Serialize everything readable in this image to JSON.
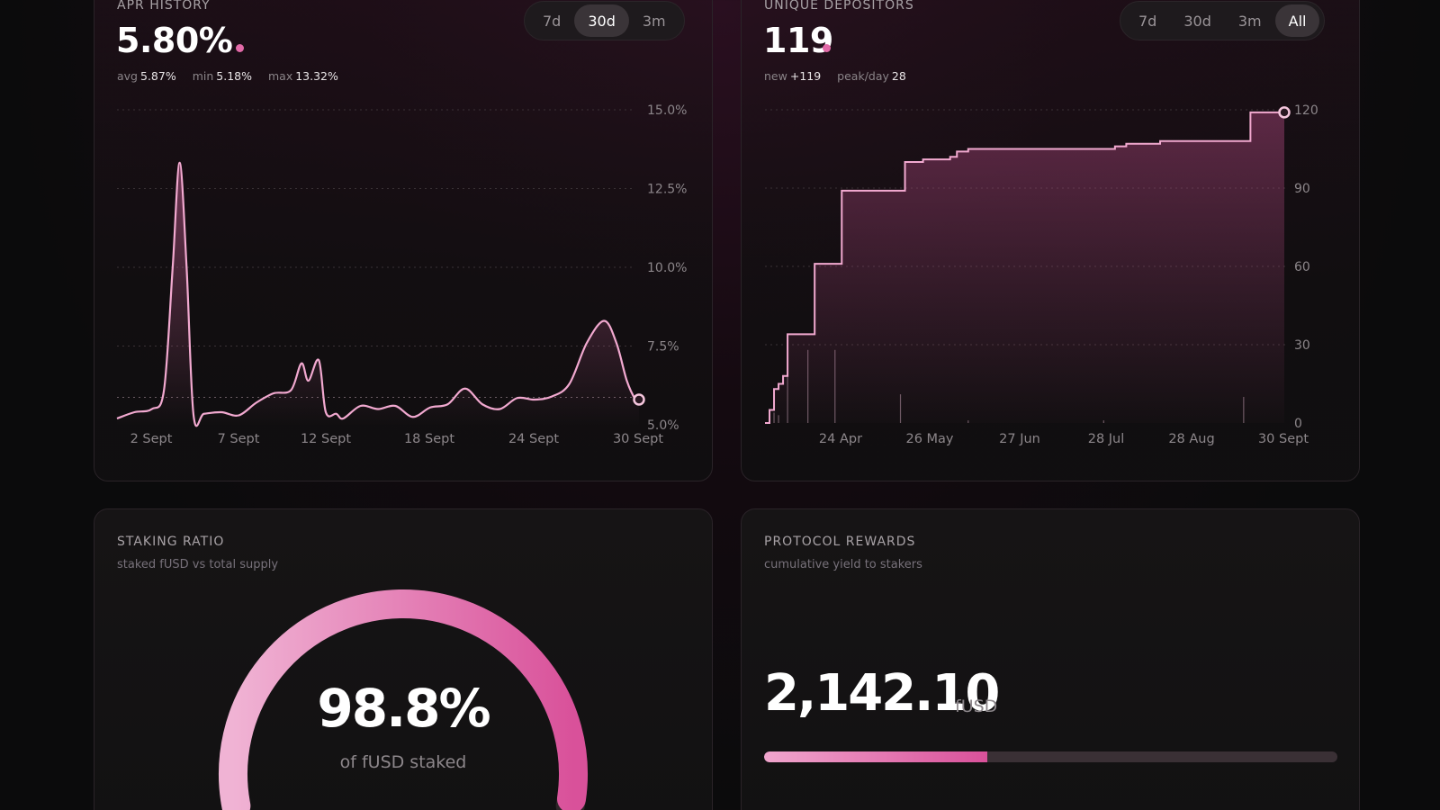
{
  "apr": {
    "title": "APR HISTORY",
    "value": "5.80%",
    "stats": [
      {
        "label": "avg",
        "value": "5.87%"
      },
      {
        "label": "min",
        "value": "5.18%"
      },
      {
        "label": "max",
        "value": "13.32%"
      }
    ],
    "ranges": [
      "7d",
      "30d",
      "3m"
    ],
    "active_range": "30d"
  },
  "depositors": {
    "title": "UNIQUE DEPOSITORS",
    "value": "119",
    "stats": [
      {
        "label": "new",
        "value": "+119"
      },
      {
        "label": "peak/day",
        "value": "28"
      }
    ],
    "ranges": [
      "7d",
      "30d",
      "3m",
      "All"
    ],
    "active_range": "All"
  },
  "staking": {
    "title": "STAKING RATIO",
    "subtitle": "staked fUSD vs total supply",
    "percent": "98.8%",
    "caption": "of fUSD staked",
    "ratio": 0.988
  },
  "rewards": {
    "title": "PROTOCOL REWARDS",
    "subtitle": "cumulative yield to stakers",
    "value": "2,142.10",
    "unit": "fUSD",
    "progress": 0.39
  },
  "colors": {
    "accent": "#e26aa8",
    "line": "#f2a9d0",
    "gauge_start": "#f0b3d4",
    "gauge_end": "#d9519a"
  },
  "chart_data": [
    {
      "type": "line",
      "x_ticks": [
        "2 Sept",
        "7 Sept",
        "12 Sept",
        "18 Sept",
        "24 Sept",
        "30 Sept"
      ],
      "y_ticks": [
        "15.0%",
        "12.5%",
        "10.0%",
        "7.5%",
        "5.0%"
      ],
      "ylim": [
        5.0,
        15.0
      ],
      "reference_line": 5.87,
      "x": [
        0,
        1,
        2,
        2.7,
        3.2,
        3.6,
        4,
        4.4,
        5,
        6,
        7,
        8,
        9,
        10,
        10.6,
        11,
        11.6,
        12,
        12.6,
        13,
        14,
        15,
        16,
        17,
        18,
        19,
        20,
        21,
        22,
        23,
        24,
        25,
        26,
        27,
        28,
        28.7,
        29.3,
        29.8,
        30
      ],
      "y": [
        5.2,
        5.4,
        5.5,
        6.1,
        10.0,
        13.32,
        10.0,
        5.3,
        5.35,
        5.4,
        5.3,
        5.7,
        6.0,
        6.1,
        6.95,
        6.4,
        7.05,
        5.4,
        5.35,
        5.2,
        5.6,
        5.5,
        5.6,
        5.25,
        5.55,
        5.65,
        6.15,
        5.65,
        5.5,
        5.85,
        5.8,
        5.9,
        6.3,
        7.6,
        8.3,
        7.6,
        6.4,
        5.8,
        5.8
      ]
    },
    {
      "type": "area",
      "x_ticks": [
        "24 Apr",
        "26 May",
        "27 Jun",
        "28 Jul",
        "28 Aug",
        "30 Sept"
      ],
      "y_ticks": [
        "120",
        "90",
        "60",
        "30",
        "0"
      ],
      "ylim": [
        0,
        120
      ],
      "cumulative": [
        [
          0,
          0
        ],
        [
          2,
          5
        ],
        [
          4,
          13
        ],
        [
          6,
          15
        ],
        [
          8,
          18
        ],
        [
          10,
          34
        ],
        [
          19,
          34
        ],
        [
          22,
          61
        ],
        [
          32,
          61
        ],
        [
          34,
          89
        ],
        [
          60,
          89
        ],
        [
          62,
          100
        ],
        [
          70,
          101
        ],
        [
          80,
          101
        ],
        [
          82,
          102
        ],
        [
          85,
          104
        ],
        [
          88,
          104
        ],
        [
          90,
          105
        ],
        [
          120,
          105
        ],
        [
          130,
          105
        ],
        [
          150,
          105
        ],
        [
          155,
          106
        ],
        [
          160,
          107
        ],
        [
          170,
          107
        ],
        [
          175,
          108
        ],
        [
          185,
          108
        ],
        [
          200,
          108
        ],
        [
          212,
          108
        ],
        [
          215,
          119
        ],
        [
          230,
          119
        ]
      ],
      "daily_bars": [
        [
          4,
          4
        ],
        [
          6,
          3
        ],
        [
          10,
          18
        ],
        [
          19,
          28
        ],
        [
          31,
          28
        ],
        [
          60,
          11
        ],
        [
          90,
          1
        ],
        [
          150,
          1
        ],
        [
          212,
          10
        ]
      ]
    }
  ]
}
